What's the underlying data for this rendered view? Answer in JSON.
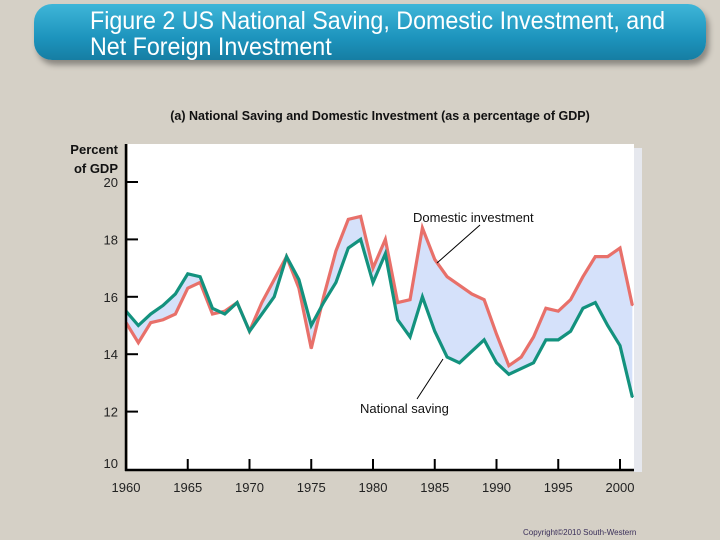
{
  "title": "Figure 2 US National Saving, Domestic Investment, and Net Foreign Investment",
  "copyright": "Copyright©2010 South-Western",
  "chart_data": {
    "type": "line",
    "title": "(a) National Saving and Domestic Investment (as a percentage of GDP)",
    "ylabel": "Percent of GDP",
    "ylabel_lines": [
      "Percent",
      "of GDP"
    ],
    "xlabel": "",
    "xlim": [
      1960,
      2001
    ],
    "ylim": [
      10,
      20
    ],
    "xticks": [
      "1960",
      "1965",
      "1970",
      "1975",
      "1980",
      "1985",
      "1990",
      "1995",
      "2000"
    ],
    "yticks": [
      "10",
      "12",
      "14",
      "16",
      "18",
      "20"
    ],
    "grid": false,
    "shaded_between_series": true,
    "x": [
      1960,
      1961,
      1962,
      1963,
      1964,
      1965,
      1966,
      1967,
      1968,
      1969,
      1970,
      1971,
      1972,
      1973,
      1974,
      1975,
      1976,
      1977,
      1978,
      1979,
      1980,
      1981,
      1982,
      1983,
      1984,
      1985,
      1986,
      1987,
      1988,
      1989,
      1990,
      1991,
      1992,
      1993,
      1994,
      1995,
      1996,
      1997,
      1998,
      1999,
      2000,
      2001
    ],
    "series": [
      {
        "name": "Domestic investment",
        "color": "#e8706a",
        "values": [
          15.1,
          14.4,
          15.1,
          15.2,
          15.4,
          16.3,
          16.5,
          15.4,
          15.5,
          15.8,
          14.8,
          15.8,
          16.6,
          17.4,
          16.3,
          14.2,
          16.0,
          17.6,
          18.7,
          18.8,
          17.0,
          18.0,
          15.8,
          15.9,
          18.4,
          17.3,
          16.7,
          16.4,
          16.1,
          15.9,
          14.7,
          13.6,
          13.9,
          14.6,
          15.6,
          15.5,
          15.9,
          16.7,
          17.4,
          17.4,
          17.7,
          15.7
        ]
      },
      {
        "name": "National saving",
        "color": "#13927e",
        "values": [
          15.5,
          15.0,
          15.4,
          15.7,
          16.1,
          16.8,
          16.7,
          15.6,
          15.4,
          15.8,
          14.8,
          15.4,
          16.0,
          17.4,
          16.6,
          15.0,
          15.8,
          16.5,
          17.7,
          18.0,
          16.5,
          17.5,
          15.2,
          14.6,
          16.0,
          14.8,
          13.9,
          13.7,
          14.1,
          14.5,
          13.7,
          13.3,
          13.5,
          13.7,
          14.5,
          14.5,
          14.8,
          15.6,
          15.8,
          15.0,
          14.3,
          12.5
        ]
      }
    ],
    "fill_color": "#d5e1fa",
    "annotations": [
      "Domestic investment",
      "National saving"
    ]
  }
}
